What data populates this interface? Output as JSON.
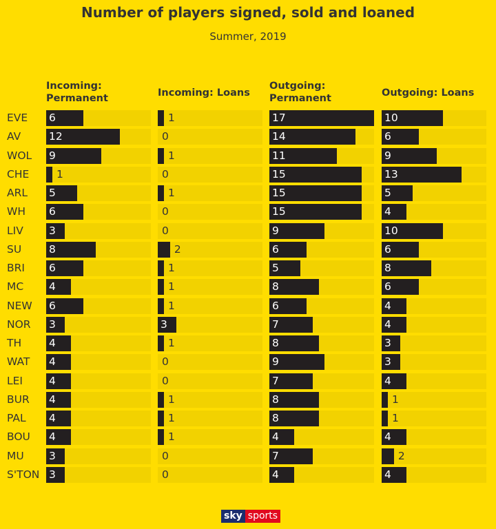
{
  "chart_data": {
    "type": "bar",
    "title": "Number of players signed, sold and loaned",
    "subtitle": "Summer, 2019",
    "categories": [
      "EVE",
      "AV",
      "WOL",
      "CHE",
      "ARL",
      "WH",
      "LIV",
      "SU",
      "BRI",
      "MC",
      "NEW",
      "NOR",
      "TH",
      "WAT",
      "LEI",
      "BUR",
      "PAL",
      "BOU",
      "MU",
      "S'TON"
    ],
    "xlim": [
      0,
      17
    ],
    "series": [
      {
        "name": "Incoming: Permanent",
        "values": [
          6,
          12,
          9,
          1,
          5,
          6,
          3,
          8,
          6,
          4,
          6,
          3,
          4,
          4,
          4,
          4,
          4,
          4,
          3,
          3
        ]
      },
      {
        "name": "Incoming: Loans",
        "values": [
          1,
          0,
          1,
          0,
          1,
          0,
          0,
          2,
          1,
          1,
          1,
          3,
          1,
          0,
          0,
          1,
          1,
          1,
          0,
          0
        ]
      },
      {
        "name": "Outgoing: Permanent",
        "values": [
          17,
          14,
          11,
          15,
          15,
          15,
          9,
          6,
          5,
          8,
          6,
          7,
          8,
          9,
          7,
          8,
          8,
          4,
          7,
          4
        ]
      },
      {
        "name": "Outgoing: Loans",
        "values": [
          10,
          6,
          9,
          13,
          5,
          4,
          10,
          6,
          8,
          6,
          4,
          4,
          3,
          3,
          4,
          1,
          1,
          4,
          2,
          4
        ]
      }
    ],
    "colors": {
      "background": "#FFDD00",
      "bar": "#231F20",
      "track": "#F2D200"
    }
  },
  "logo": "sky sports"
}
